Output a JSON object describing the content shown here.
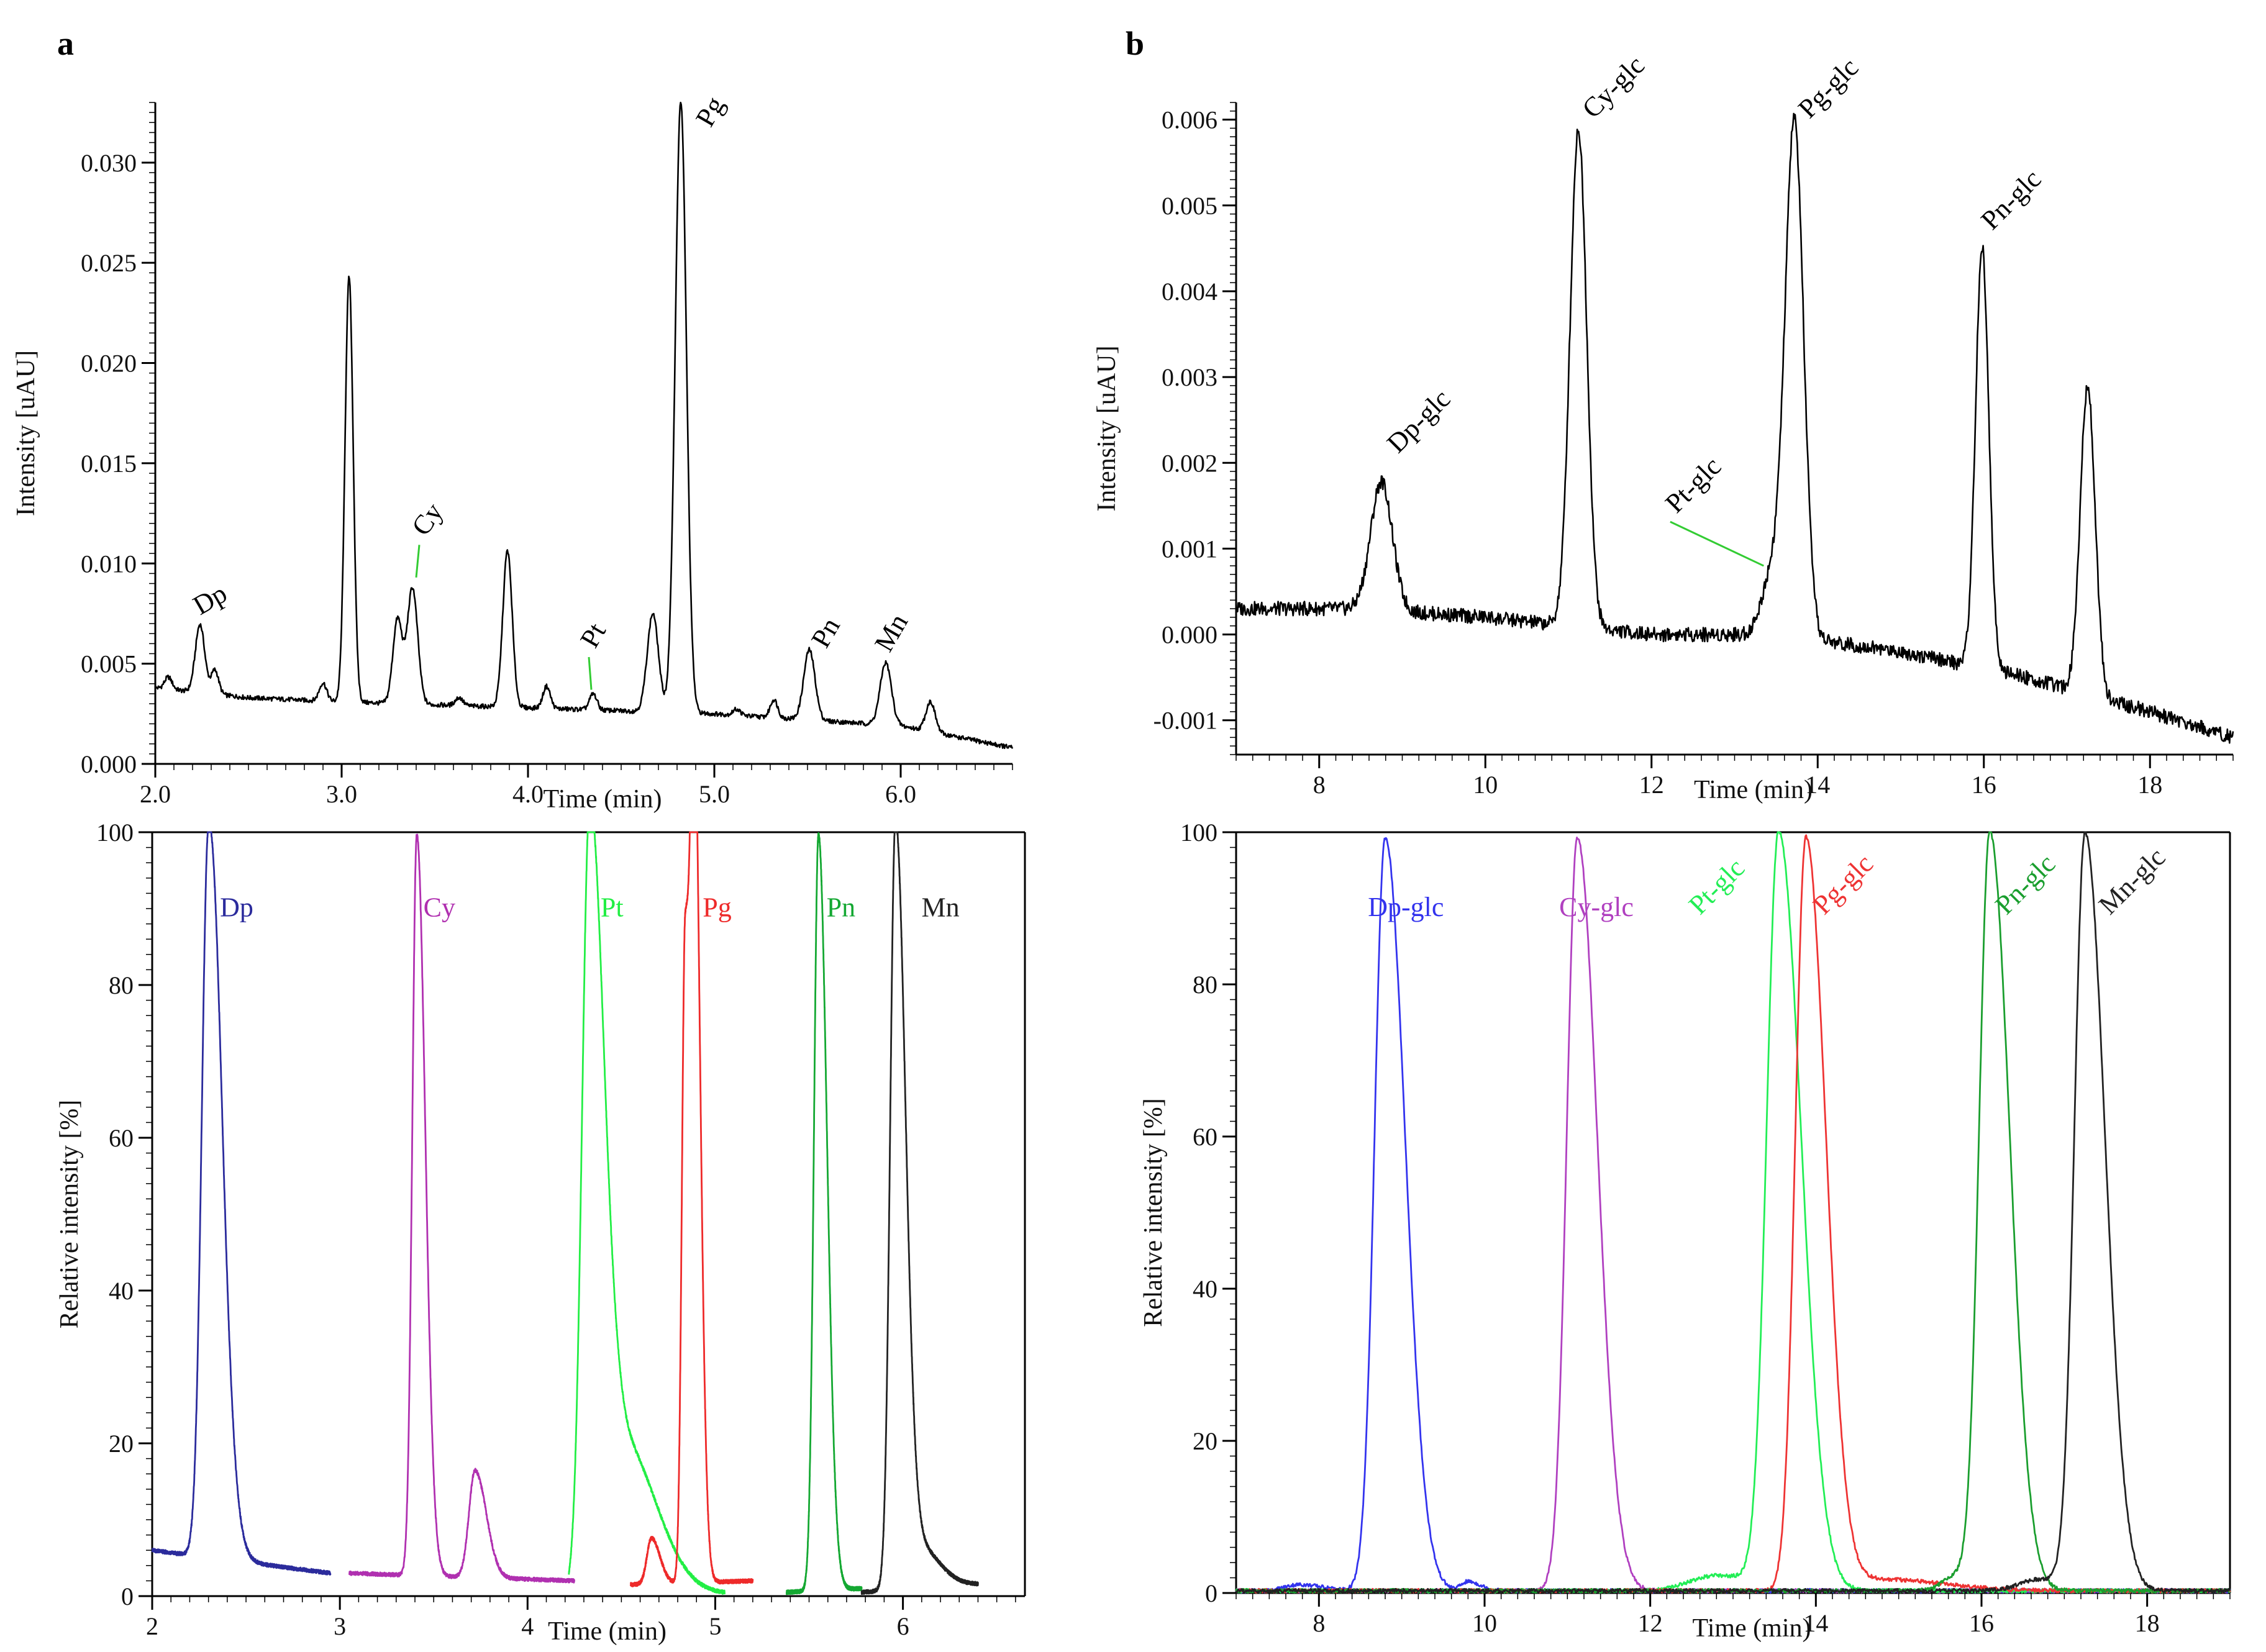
{
  "chart_data": [
    {
      "id": "a_top",
      "panel": "a",
      "type": "line",
      "xlabel": "Time (min)",
      "ylabel": "Intensity [uAU]",
      "xlim": [
        2.0,
        6.6
      ],
      "ylim": [
        0.0,
        0.033
      ],
      "xticks": [
        2.0,
        3.0,
        4.0,
        5.0,
        6.0
      ],
      "xtick_labels": [
        "2.0",
        "3.0",
        "4.0",
        "5.0",
        "6.0"
      ],
      "yticks": [
        0.0,
        0.005,
        0.01,
        0.015,
        0.02,
        0.025,
        0.03
      ],
      "ytick_labels": [
        "0.000",
        "0.005",
        "0.010",
        "0.015",
        "0.020",
        "0.025",
        "0.030"
      ],
      "baseline": [
        [
          2.0,
          0.0038
        ],
        [
          2.5,
          0.0033
        ],
        [
          3.0,
          0.0031
        ],
        [
          4.0,
          0.0028
        ],
        [
          5.0,
          0.0025
        ],
        [
          6.0,
          0.0019
        ],
        [
          6.6,
          0.0008
        ]
      ],
      "series": [
        {
          "name": "chromatogram",
          "color": "#000000",
          "peaks": [
            [
              2.07,
              0.0006,
              0.02
            ],
            [
              2.24,
              0.0034,
              0.025
            ],
            [
              2.32,
              0.0012,
              0.02
            ],
            [
              2.9,
              0.0009,
              0.02
            ],
            [
              3.04,
              0.0212,
              0.022
            ],
            [
              3.3,
              0.0042,
              0.025
            ],
            [
              3.38,
              0.0058,
              0.028
            ],
            [
              3.63,
              0.0004,
              0.02
            ],
            [
              3.89,
              0.0078,
              0.025
            ],
            [
              4.1,
              0.0011,
              0.02
            ],
            [
              4.35,
              0.0008,
              0.02
            ],
            [
              4.67,
              0.0049,
              0.03
            ],
            [
              4.82,
              0.0305,
              0.03
            ],
            [
              5.12,
              0.0003,
              0.02
            ],
            [
              5.32,
              0.0009,
              0.02
            ],
            [
              5.51,
              0.0035,
              0.03
            ],
            [
              5.92,
              0.0031,
              0.03
            ],
            [
              6.16,
              0.0015,
              0.025
            ]
          ]
        }
      ],
      "annotations": [
        {
          "text": "Dp",
          "x": 2.24,
          "y": 0.0074,
          "rotate": -30,
          "color": "#000000"
        },
        {
          "text": "Cy",
          "x": 3.45,
          "y": 0.0113,
          "rotate": -55,
          "color": "#000000",
          "leader_to": [
            3.4,
            0.0093
          ],
          "leader_color": "#33cc33"
        },
        {
          "text": "Pt",
          "x": 4.36,
          "y": 0.0057,
          "rotate": -60,
          "color": "#000000",
          "leader_to": [
            4.34,
            0.0037
          ],
          "leader_color": "#33cc33"
        },
        {
          "text": "Pg",
          "x": 4.98,
          "y": 0.0317,
          "rotate": -60,
          "color": "#000000"
        },
        {
          "text": "Pn",
          "x": 5.6,
          "y": 0.0057,
          "rotate": -60,
          "color": "#000000"
        },
        {
          "text": "Mn",
          "x": 5.94,
          "y": 0.0055,
          "rotate": -60,
          "color": "#000000"
        }
      ]
    },
    {
      "id": "a_bottom",
      "panel": "a",
      "type": "line",
      "xlabel": "Time (min)",
      "ylabel": "Relative intensity [%]",
      "xlim": [
        2.0,
        6.65
      ],
      "ylim": [
        0,
        100
      ],
      "xticks": [
        2,
        3,
        4,
        5,
        6
      ],
      "xtick_labels": [
        "2",
        "3",
        "4",
        "5",
        "6"
      ],
      "yticks": [
        0,
        20,
        40,
        60,
        80,
        100
      ],
      "ytick_labels": [
        "0",
        "20",
        "40",
        "60",
        "80",
        "100"
      ],
      "series": [
        {
          "name": "Dp",
          "color": "#2b2b9c",
          "range": [
            2.0,
            2.95
          ],
          "baseline": 6,
          "baseline_end": 3,
          "peaks": [
            [
              2.3,
              94,
              0.045
            ],
            [
              2.36,
              6,
              0.05
            ]
          ]
        },
        {
          "name": "Cy",
          "color": "#b030b0",
          "range": [
            3.05,
            4.25
          ],
          "baseline": 3,
          "baseline_end": 2,
          "peaks": [
            [
              3.41,
              97,
              0.03
            ],
            [
              3.72,
              14,
              0.04
            ]
          ]
        },
        {
          "name": "Pt",
          "color": "#22ee44",
          "range": [
            4.22,
            5.05
          ],
          "baseline": 0.5,
          "baseline_end": 0.3,
          "peaks": [
            [
              4.33,
              99,
              0.05
            ],
            [
              4.5,
              20,
              0.12
            ]
          ]
        },
        {
          "name": "Pg",
          "color": "#ee2a2a",
          "range": [
            4.55,
            5.2
          ],
          "baseline": 1.5,
          "baseline_end": 2,
          "peaks": [
            [
              4.66,
              6,
              0.03
            ],
            [
              4.84,
              86,
              0.022
            ],
            [
              4.89,
              95,
              0.022
            ]
          ]
        },
        {
          "name": "Pn",
          "color": "#14a832",
          "range": [
            5.38,
            5.78
          ],
          "baseline": 0.5,
          "baseline_end": 1,
          "peaks": [
            [
              5.55,
              99,
              0.03
            ]
          ]
        },
        {
          "name": "Mn",
          "color": "#222222",
          "range": [
            5.78,
            6.4
          ],
          "baseline": 0.5,
          "baseline_end": 1.5,
          "peaks": [
            [
              5.96,
              99,
              0.035
            ],
            [
              6.06,
              6,
              0.08
            ]
          ]
        }
      ],
      "annotations": [
        {
          "text": "Dp",
          "x": 2.45,
          "y": 89,
          "rotate": 0,
          "color": "#2b2b9c"
        },
        {
          "text": "Cy",
          "x": 3.53,
          "y": 89,
          "rotate": 0,
          "color": "#b030b0"
        },
        {
          "text": "Pt",
          "x": 4.45,
          "y": 89,
          "rotate": 0,
          "color": "#22ee44"
        },
        {
          "text": "Pg",
          "x": 5.01,
          "y": 89,
          "rotate": 0,
          "color": "#ee2a2a"
        },
        {
          "text": "Pn",
          "x": 5.67,
          "y": 89,
          "rotate": 0,
          "color": "#14a832"
        },
        {
          "text": "Mn",
          "x": 6.2,
          "y": 89,
          "rotate": 0,
          "color": "#222222"
        }
      ]
    },
    {
      "id": "b_top",
      "panel": "b",
      "type": "line",
      "xlabel": "Time (min)",
      "ylabel": "Intensity [uAU]",
      "xlim": [
        7.0,
        19.0
      ],
      "ylim": [
        -0.0014,
        0.0062
      ],
      "xticks": [
        8,
        10,
        12,
        14,
        16,
        18
      ],
      "xtick_labels": [
        "8",
        "10",
        "12",
        "14",
        "16",
        "18"
      ],
      "yticks": [
        -0.001,
        0.0,
        0.001,
        0.002,
        0.003,
        0.004,
        0.005,
        0.006
      ],
      "ytick_labels": [
        "-0.001",
        "0.000",
        "0.001",
        "0.002",
        "0.003",
        "0.004",
        "0.005",
        "0.006"
      ],
      "baseline": [
        [
          7.0,
          0.0003
        ],
        [
          8.5,
          0.0003
        ],
        [
          10.0,
          0.0002
        ],
        [
          12.0,
          0.0
        ],
        [
          13.5,
          0.0
        ],
        [
          15.0,
          -0.0002
        ],
        [
          16.5,
          -0.0005
        ],
        [
          18.0,
          -0.0009
        ],
        [
          19.0,
          -0.0012
        ]
      ],
      "series": [
        {
          "name": "chromatogram",
          "color": "#000000",
          "peaks": [
            [
              8.75,
              0.0015,
              0.13
            ],
            [
              11.12,
              0.0058,
              0.1
            ],
            [
              13.45,
              0.0007,
              0.12
            ],
            [
              13.72,
              0.006,
              0.11
            ],
            [
              15.98,
              0.0049,
              0.08
            ],
            [
              17.25,
              0.0036,
              0.09
            ]
          ]
        }
      ],
      "annotations": [
        {
          "text": "Dp-glc",
          "x": 8.95,
          "y": 0.0021,
          "rotate": -45,
          "color": "#000000"
        },
        {
          "text": "Cy-glc",
          "x": 11.3,
          "y": 0.006,
          "rotate": -45,
          "color": "#000000"
        },
        {
          "text": "Pt-glc",
          "x": 12.3,
          "y": 0.0014,
          "rotate": -45,
          "color": "#000000",
          "leader_to": [
            13.35,
            0.0008
          ],
          "leader_color": "#33cc33"
        },
        {
          "text": "Pg-glc",
          "x": 13.9,
          "y": 0.006,
          "rotate": -45,
          "color": "#000000"
        },
        {
          "text": "Pn-glc",
          "x": 16.1,
          "y": 0.0047,
          "rotate": -45,
          "color": "#000000"
        }
      ]
    },
    {
      "id": "b_bottom",
      "panel": "b",
      "type": "line",
      "xlabel": "Time (min)",
      "ylabel": "Relative intensity [%]",
      "xlim": [
        7.0,
        19.0
      ],
      "ylim": [
        0,
        100
      ],
      "xticks": [
        8,
        10,
        12,
        14,
        16,
        18
      ],
      "xtick_labels": [
        "8",
        "10",
        "12",
        "14",
        "16",
        "18"
      ],
      "yticks": [
        0,
        20,
        40,
        60,
        80,
        100
      ],
      "ytick_labels": [
        "0",
        "20",
        "40",
        "60",
        "80",
        "100"
      ],
      "series": [
        {
          "name": "Dp-glc",
          "color": "#3333ee",
          "range": [
            7.0,
            19.0
          ],
          "baseline": 0.3,
          "baseline_end": 0.3,
          "peaks": [
            [
              8.8,
              99,
              0.16
            ],
            [
              7.75,
              0.8,
              0.2
            ],
            [
              9.8,
              1.2,
              0.1
            ]
          ]
        },
        {
          "name": "Cy-glc",
          "color": "#b040c0",
          "range": [
            7.0,
            19.0
          ],
          "baseline": 0.3,
          "baseline_end": 0.3,
          "peaks": [
            [
              11.12,
              99,
              0.16
            ]
          ]
        },
        {
          "name": "Pt-glc",
          "color": "#22ee55",
          "range": [
            7.0,
            19.0
          ],
          "baseline": 0.3,
          "baseline_end": 0.3,
          "peaks": [
            [
              13.55,
              99,
              0.18
            ],
            [
              12.8,
              2,
              0.4
            ]
          ]
        },
        {
          "name": "Pg-glc",
          "color": "#ee3333",
          "range": [
            7.0,
            19.0
          ],
          "baseline": 0.3,
          "baseline_end": 0.3,
          "peaks": [
            [
              13.88,
              99,
              0.16
            ],
            [
              14.8,
              1.5,
              0.5
            ]
          ]
        },
        {
          "name": "Pn-glc",
          "color": "#1a9e2e",
          "range": [
            7.0,
            19.0
          ],
          "baseline": 0.3,
          "baseline_end": 0.3,
          "peaks": [
            [
              16.1,
              99,
              0.16
            ],
            [
              15.7,
              2,
              0.2
            ]
          ]
        },
        {
          "name": "Mn-glc",
          "color": "#222222",
          "range": [
            7.0,
            19.0
          ],
          "baseline": 0.3,
          "baseline_end": 0.3,
          "peaks": [
            [
              17.25,
              99,
              0.16
            ],
            [
              16.7,
              1.5,
              0.3
            ]
          ]
        }
      ],
      "annotations": [
        {
          "text": "Dp-glc",
          "x": 9.05,
          "y": 89,
          "rotate": 0,
          "color": "#3333ee"
        },
        {
          "text": "Cy-glc",
          "x": 11.35,
          "y": 89,
          "rotate": 0,
          "color": "#b040c0"
        },
        {
          "text": "Pt-glc",
          "x": 12.6,
          "y": 89,
          "rotate": -45,
          "color": "#22ee55"
        },
        {
          "text": "Pg-glc",
          "x": 14.1,
          "y": 89,
          "rotate": -45,
          "color": "#ee3333"
        },
        {
          "text": "Pn-glc",
          "x": 16.3,
          "y": 89,
          "rotate": -45,
          "color": "#1a9e2e"
        },
        {
          "text": "Mn-glc",
          "x": 17.55,
          "y": 89,
          "rotate": -45,
          "color": "#222222"
        }
      ]
    }
  ],
  "panel_labels": [
    "a",
    "b"
  ]
}
